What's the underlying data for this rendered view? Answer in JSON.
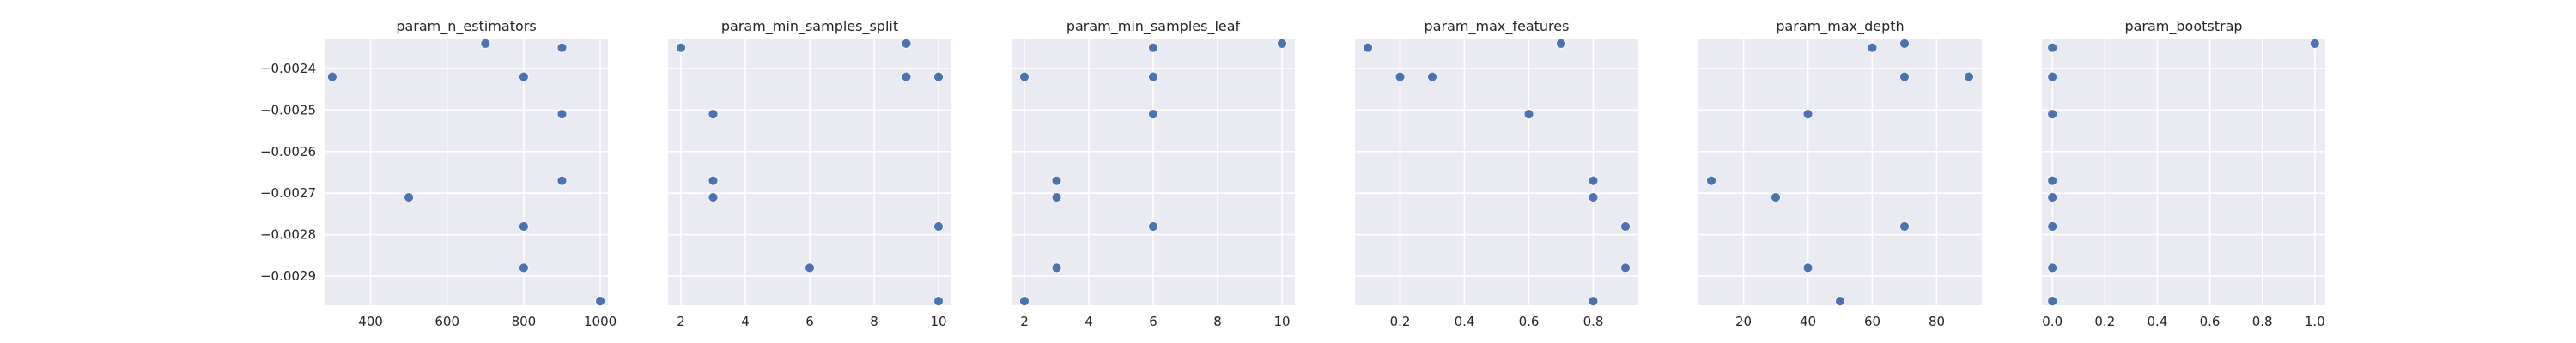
{
  "chart_data": {
    "type": "scatter",
    "shared_y": {
      "ticks": [
        -0.0029,
        -0.0028,
        -0.0027,
        -0.0026,
        -0.0025,
        -0.0024
      ],
      "tick_labels": [
        "−0.0029",
        "−0.0028",
        "−0.0027",
        "−0.0026",
        "−0.0025",
        "−0.0024"
      ],
      "ylim": [
        -0.00297,
        -0.00233
      ]
    },
    "grid": true,
    "point_color": "#4c72b0",
    "background": "#eaeaf2",
    "panels": [
      {
        "title": "param_n_estimators",
        "xlim": [
          280,
          1020
        ],
        "xticks": [
          400,
          600,
          800,
          1000
        ],
        "xtick_labels": [
          "400",
          "600",
          "800",
          "1000"
        ],
        "points": [
          [
            300,
            -0.00242
          ],
          [
            700,
            -0.00234
          ],
          [
            800,
            -0.00242
          ],
          [
            900,
            -0.00235
          ],
          [
            900,
            -0.00251
          ],
          [
            900,
            -0.00267
          ],
          [
            500,
            -0.00271
          ],
          [
            800,
            -0.00278
          ],
          [
            800,
            -0.00288
          ],
          [
            1000,
            -0.00296
          ]
        ]
      },
      {
        "title": "param_min_samples_split",
        "xlim": [
          1.6,
          10.4
        ],
        "xticks": [
          2,
          4,
          6,
          8,
          10
        ],
        "xtick_labels": [
          "2",
          "4",
          "6",
          "8",
          "10"
        ],
        "points": [
          [
            2,
            -0.00235
          ],
          [
            9,
            -0.00234
          ],
          [
            9,
            -0.00242
          ],
          [
            10,
            -0.00242
          ],
          [
            3,
            -0.00251
          ],
          [
            3,
            -0.00267
          ],
          [
            3,
            -0.00271
          ],
          [
            10,
            -0.00278
          ],
          [
            6,
            -0.00288
          ],
          [
            10,
            -0.00296
          ]
        ]
      },
      {
        "title": "param_min_samples_leaf",
        "xlim": [
          1.6,
          10.4
        ],
        "xticks": [
          2,
          4,
          6,
          8,
          10
        ],
        "xtick_labels": [
          "2",
          "4",
          "6",
          "8",
          "10"
        ],
        "points": [
          [
            10,
            -0.00234
          ],
          [
            6,
            -0.00235
          ],
          [
            6,
            -0.00242
          ],
          [
            2,
            -0.00242
          ],
          [
            6,
            -0.00251
          ],
          [
            3,
            -0.00267
          ],
          [
            3,
            -0.00271
          ],
          [
            6,
            -0.00278
          ],
          [
            3,
            -0.00288
          ],
          [
            2,
            -0.00296
          ]
        ]
      },
      {
        "title": "param_max_features",
        "xlim": [
          0.06,
          0.94
        ],
        "xticks": [
          0.2,
          0.4,
          0.6,
          0.8
        ],
        "xtick_labels": [
          "0.2",
          "0.4",
          "0.6",
          "0.8"
        ],
        "points": [
          [
            0.1,
            -0.00235
          ],
          [
            0.7,
            -0.00234
          ],
          [
            0.2,
            -0.00242
          ],
          [
            0.3,
            -0.00242
          ],
          [
            0.6,
            -0.00251
          ],
          [
            0.8,
            -0.00267
          ],
          [
            0.8,
            -0.00271
          ],
          [
            0.9,
            -0.00278
          ],
          [
            0.9,
            -0.00288
          ],
          [
            0.8,
            -0.00296
          ]
        ]
      },
      {
        "title": "param_max_depth",
        "xlim": [
          6,
          94
        ],
        "xticks": [
          20,
          40,
          60,
          80
        ],
        "xtick_labels": [
          "20",
          "40",
          "60",
          "80"
        ],
        "points": [
          [
            60,
            -0.00235
          ],
          [
            70,
            -0.00234
          ],
          [
            70,
            -0.00242
          ],
          [
            90,
            -0.00242
          ],
          [
            40,
            -0.00251
          ],
          [
            10,
            -0.00267
          ],
          [
            30,
            -0.00271
          ],
          [
            70,
            -0.00278
          ],
          [
            40,
            -0.00288
          ],
          [
            50,
            -0.00296
          ]
        ]
      },
      {
        "title": "param_bootstrap",
        "xlim": [
          -0.04,
          1.04
        ],
        "xticks": [
          0.0,
          0.2,
          0.4,
          0.6,
          0.8,
          1.0
        ],
        "xtick_labels": [
          "0.0",
          "0.2",
          "0.4",
          "0.6",
          "0.8",
          "1.0"
        ],
        "points": [
          [
            1.0,
            -0.00234
          ],
          [
            0.0,
            -0.00235
          ],
          [
            0.0,
            -0.00242
          ],
          [
            0.0,
            -0.00242
          ],
          [
            0.0,
            -0.00251
          ],
          [
            0.0,
            -0.00267
          ],
          [
            0.0,
            -0.00271
          ],
          [
            0.0,
            -0.00278
          ],
          [
            0.0,
            -0.00288
          ],
          [
            0.0,
            -0.00296
          ]
        ]
      }
    ]
  }
}
